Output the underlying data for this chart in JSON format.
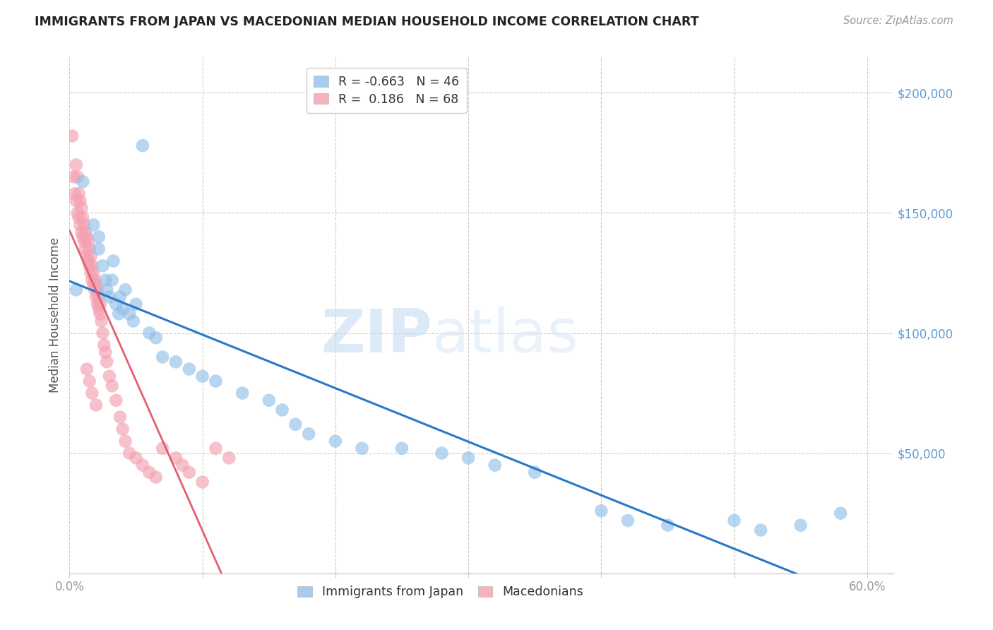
{
  "title": "IMMIGRANTS FROM JAPAN VS MACEDONIAN MEDIAN HOUSEHOLD INCOME CORRELATION CHART",
  "source": "Source: ZipAtlas.com",
  "ylabel": "Median Household Income",
  "xlim": [
    0.0,
    0.62
  ],
  "ylim": [
    0,
    215000
  ],
  "yticks": [
    0,
    50000,
    100000,
    150000,
    200000
  ],
  "xticks": [
    0.0,
    0.1,
    0.2,
    0.3,
    0.4,
    0.5,
    0.6
  ],
  "xtick_labels": [
    "0.0%",
    "",
    "",
    "",
    "",
    "",
    "60.0%"
  ],
  "watermark_zip": "ZIP",
  "watermark_atlas": "atlas",
  "legend_blue_r": "-0.663",
  "legend_blue_n": "46",
  "legend_pink_r": "0.186",
  "legend_pink_n": "68",
  "blue_color": "#92C0E8",
  "pink_color": "#F4A0B0",
  "blue_line_color": "#2878C8",
  "pink_line_color": "#E06070",
  "title_color": "#222222",
  "axis_label_color": "#555555",
  "ytick_color": "#5b9bd5",
  "grid_color": "#cccccc",
  "japan_x": [
    0.005,
    0.01,
    0.018,
    0.022,
    0.022,
    0.025,
    0.027,
    0.028,
    0.03,
    0.032,
    0.033,
    0.035,
    0.037,
    0.038,
    0.04,
    0.042,
    0.045,
    0.048,
    0.05,
    0.055,
    0.06,
    0.065,
    0.07,
    0.08,
    0.09,
    0.1,
    0.11,
    0.13,
    0.15,
    0.16,
    0.17,
    0.18,
    0.2,
    0.22,
    0.25,
    0.28,
    0.3,
    0.32,
    0.35,
    0.4,
    0.42,
    0.45,
    0.5,
    0.52,
    0.55,
    0.58
  ],
  "japan_y": [
    118000,
    163000,
    145000,
    140000,
    135000,
    128000,
    122000,
    118000,
    115000,
    122000,
    130000,
    112000,
    108000,
    115000,
    110000,
    118000,
    108000,
    105000,
    112000,
    178000,
    100000,
    98000,
    90000,
    88000,
    85000,
    82000,
    80000,
    75000,
    72000,
    68000,
    62000,
    58000,
    55000,
    52000,
    52000,
    50000,
    48000,
    45000,
    42000,
    26000,
    22000,
    20000,
    22000,
    18000,
    20000,
    25000
  ],
  "macedonian_x": [
    0.002,
    0.003,
    0.004,
    0.005,
    0.005,
    0.006,
    0.006,
    0.007,
    0.007,
    0.008,
    0.008,
    0.009,
    0.009,
    0.01,
    0.01,
    0.011,
    0.011,
    0.012,
    0.012,
    0.013,
    0.013,
    0.014,
    0.014,
    0.015,
    0.015,
    0.016,
    0.016,
    0.017,
    0.017,
    0.018,
    0.018,
    0.019,
    0.019,
    0.02,
    0.02,
    0.021,
    0.021,
    0.022,
    0.022,
    0.023,
    0.023,
    0.024,
    0.025,
    0.026,
    0.027,
    0.028,
    0.03,
    0.032,
    0.035,
    0.038,
    0.04,
    0.042,
    0.045,
    0.05,
    0.055,
    0.06,
    0.065,
    0.07,
    0.08,
    0.085,
    0.09,
    0.1,
    0.11,
    0.12,
    0.013,
    0.015,
    0.017,
    0.02
  ],
  "macedonian_y": [
    182000,
    165000,
    158000,
    170000,
    155000,
    165000,
    150000,
    148000,
    158000,
    145000,
    155000,
    142000,
    152000,
    140000,
    148000,
    138000,
    145000,
    135000,
    142000,
    132000,
    140000,
    130000,
    138000,
    128000,
    135000,
    125000,
    132000,
    122000,
    128000,
    120000,
    125000,
    118000,
    122000,
    115000,
    120000,
    112000,
    118000,
    110000,
    115000,
    108000,
    112000,
    105000,
    100000,
    95000,
    92000,
    88000,
    82000,
    78000,
    72000,
    65000,
    60000,
    55000,
    50000,
    48000,
    45000,
    42000,
    40000,
    52000,
    48000,
    45000,
    42000,
    38000,
    52000,
    48000,
    85000,
    80000,
    75000,
    70000
  ]
}
